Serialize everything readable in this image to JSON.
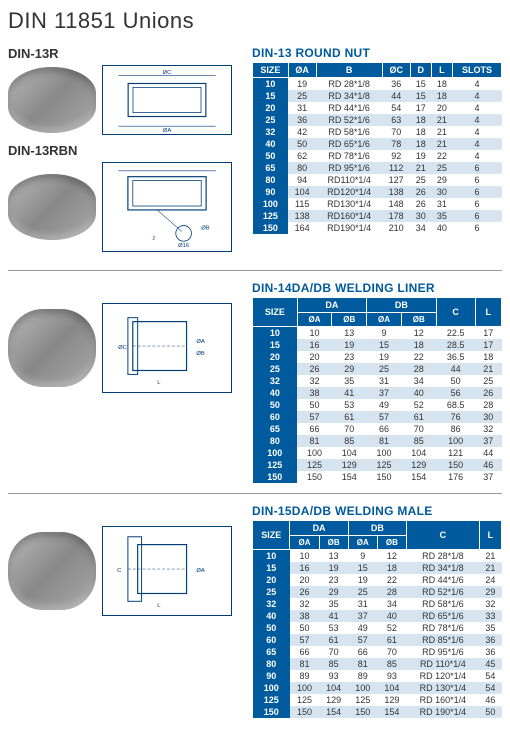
{
  "page_title": "DIN 11851 Unions",
  "labels": {
    "din13r": "DIN-13R",
    "din13rbn": "DIN-13RBN"
  },
  "table1": {
    "title": "DIN-13 ROUND NUT",
    "headers": [
      "SIZE",
      "ØA",
      "B",
      "ØC",
      "D",
      "L",
      "SLOTS"
    ],
    "rows": [
      [
        "10",
        "19",
        "RD 28*1/8",
        "36",
        "15",
        "18",
        "4"
      ],
      [
        "15",
        "25",
        "RD 34*1/8",
        "44",
        "15",
        "18",
        "4"
      ],
      [
        "20",
        "31",
        "RD 44*1/6",
        "54",
        "17",
        "20",
        "4"
      ],
      [
        "25",
        "36",
        "RD 52*1/6",
        "63",
        "18",
        "21",
        "4"
      ],
      [
        "32",
        "42",
        "RD 58*1/6",
        "70",
        "18",
        "21",
        "4"
      ],
      [
        "40",
        "50",
        "RD 65*1/6",
        "78",
        "18",
        "21",
        "4"
      ],
      [
        "50",
        "62",
        "RD 78*1/6",
        "92",
        "19",
        "22",
        "4"
      ],
      [
        "65",
        "80",
        "RD 95*1/6",
        "112",
        "21",
        "25",
        "6"
      ],
      [
        "80",
        "94",
        "RD110*1/4",
        "127",
        "25",
        "29",
        "6"
      ],
      [
        "90",
        "104",
        "RD120*1/4",
        "138",
        "26",
        "30",
        "6"
      ],
      [
        "100",
        "115",
        "RD130*1/4",
        "148",
        "26",
        "31",
        "6"
      ],
      [
        "125",
        "138",
        "RD160*1/4",
        "178",
        "30",
        "35",
        "6"
      ],
      [
        "150",
        "164",
        "RD190*1/4",
        "210",
        "34",
        "40",
        "6"
      ]
    ]
  },
  "table2": {
    "title": "DIN-14DA/DB WELDING LINER",
    "headers_top": [
      "SIZE",
      "DA",
      "DB",
      "C",
      "L"
    ],
    "headers_sub": [
      "ØA",
      "ØB",
      "ØA",
      "ØB"
    ],
    "rows": [
      [
        "10",
        "10",
        "13",
        "9",
        "12",
        "22.5",
        "17"
      ],
      [
        "15",
        "16",
        "19",
        "15",
        "18",
        "28.5",
        "17"
      ],
      [
        "20",
        "20",
        "23",
        "19",
        "22",
        "36.5",
        "18"
      ],
      [
        "25",
        "26",
        "29",
        "25",
        "28",
        "44",
        "21"
      ],
      [
        "32",
        "32",
        "35",
        "31",
        "34",
        "50",
        "25"
      ],
      [
        "40",
        "38",
        "41",
        "37",
        "40",
        "56",
        "26"
      ],
      [
        "50",
        "50",
        "53",
        "49",
        "52",
        "68.5",
        "28"
      ],
      [
        "60",
        "57",
        "61",
        "57",
        "61",
        "76",
        "30"
      ],
      [
        "65",
        "66",
        "70",
        "66",
        "70",
        "86",
        "32"
      ],
      [
        "80",
        "81",
        "85",
        "81",
        "85",
        "100",
        "37"
      ],
      [
        "100",
        "100",
        "104",
        "100",
        "104",
        "121",
        "44"
      ],
      [
        "125",
        "125",
        "129",
        "125",
        "129",
        "150",
        "46"
      ],
      [
        "150",
        "150",
        "154",
        "150",
        "154",
        "176",
        "37"
      ]
    ]
  },
  "table3": {
    "title": "DIN-15DA/DB WELDING MALE",
    "headers_top": [
      "SIZE",
      "DA",
      "DB",
      "C",
      "L"
    ],
    "headers_sub": [
      "ØA",
      "ØB",
      "ØA",
      "ØB"
    ],
    "rows": [
      [
        "10",
        "10",
        "13",
        "9",
        "12",
        "RD 28*1/8",
        "21"
      ],
      [
        "15",
        "16",
        "19",
        "15",
        "18",
        "RD 34*1/8",
        "21"
      ],
      [
        "20",
        "20",
        "23",
        "19",
        "22",
        "RD 44*1/6",
        "24"
      ],
      [
        "25",
        "26",
        "29",
        "25",
        "28",
        "RD 52*1/6",
        "29"
      ],
      [
        "32",
        "32",
        "35",
        "31",
        "34",
        "RD 58*1/6",
        "32"
      ],
      [
        "40",
        "38",
        "41",
        "37",
        "40",
        "RD 65*1/6",
        "33"
      ],
      [
        "50",
        "50",
        "53",
        "49",
        "52",
        "RD 78*1/6",
        "35"
      ],
      [
        "60",
        "57",
        "61",
        "57",
        "61",
        "RD 85*1/6",
        "36"
      ],
      [
        "65",
        "66",
        "70",
        "66",
        "70",
        "RD 95*1/6",
        "36"
      ],
      [
        "80",
        "81",
        "85",
        "81",
        "85",
        "RD 110*1/4",
        "45"
      ],
      [
        "90",
        "89",
        "93",
        "89",
        "93",
        "RD 120*1/4",
        "54"
      ],
      [
        "100",
        "100",
        "104",
        "100",
        "104",
        "RD 130*1/4",
        "54"
      ],
      [
        "125",
        "125",
        "129",
        "125",
        "129",
        "RD 160*1/4",
        "46"
      ],
      [
        "150",
        "150",
        "154",
        "150",
        "154",
        "RD 190*1/4",
        "50"
      ]
    ]
  }
}
